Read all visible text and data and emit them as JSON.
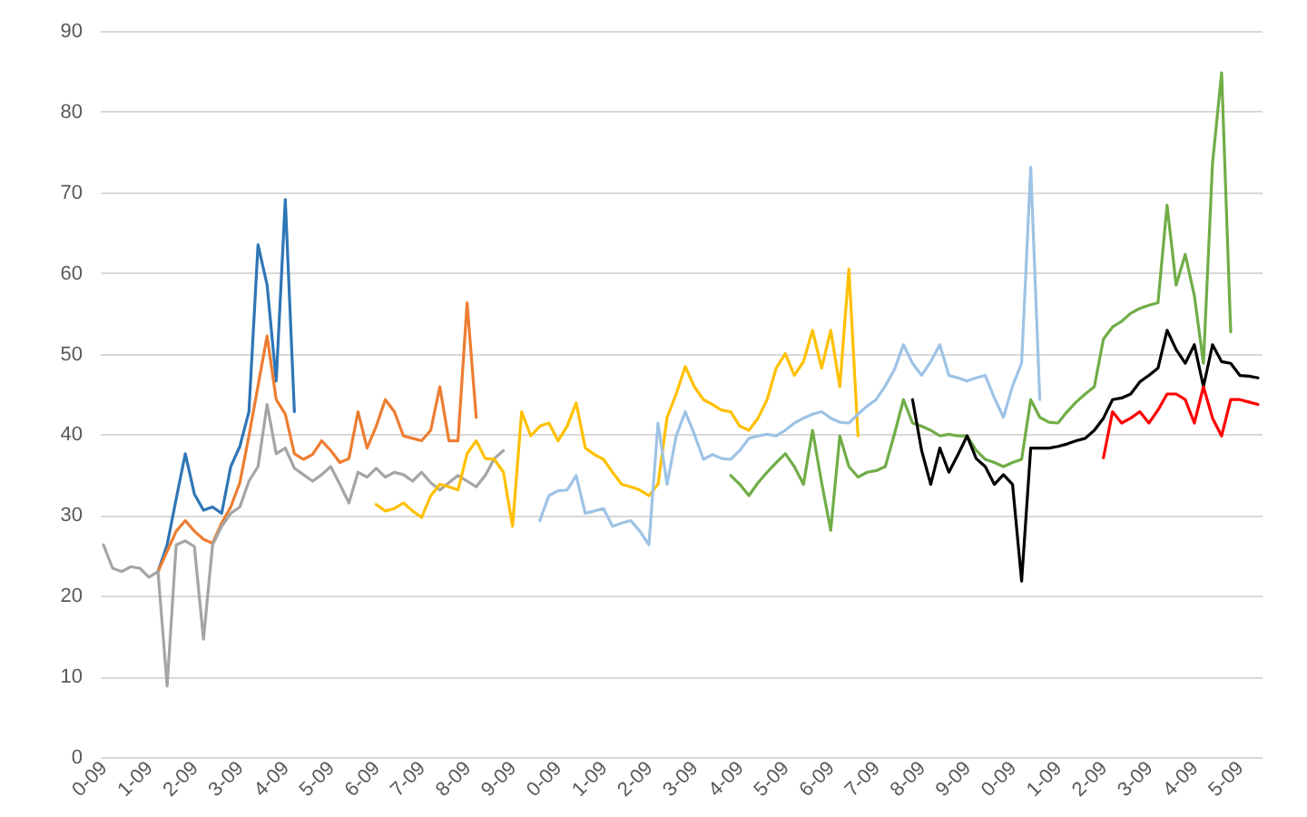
{
  "chart_data": {
    "type": "line",
    "categories": [
      "0-09",
      null,
      null,
      null,
      null,
      "1-09",
      null,
      null,
      null,
      null,
      "2-09",
      null,
      null,
      null,
      null,
      "3-09",
      null,
      null,
      null,
      null,
      "4-09",
      null,
      null,
      null,
      null,
      "5-09",
      null,
      null,
      null,
      null,
      "6-09",
      null,
      null,
      null,
      null,
      "7-09",
      null,
      null,
      null,
      null,
      "8-09",
      null,
      null,
      null,
      null,
      "9-09",
      null,
      null,
      null,
      null,
      "0-09",
      null,
      null,
      null,
      null,
      "1-09",
      null,
      null,
      null,
      null,
      "2-09",
      null,
      null,
      null,
      null,
      "3-09",
      null,
      null,
      null,
      null,
      "4-09",
      null,
      null,
      null,
      null,
      "5-09",
      null,
      null,
      null,
      null,
      "6-09",
      null,
      null,
      null,
      null,
      "7-09",
      null,
      null,
      null,
      null,
      "8-09",
      null,
      null,
      null,
      null,
      "9-09",
      null,
      null,
      null,
      null,
      "0-09",
      null,
      null,
      null,
      null,
      "1-09",
      null,
      null,
      null,
      null,
      "2-09",
      null,
      null,
      null,
      null,
      "3-09",
      null,
      null,
      null,
      null,
      "4-09",
      null,
      null,
      null,
      null,
      "5-09",
      null,
      null
    ],
    "ylim": [
      0,
      90
    ],
    "yticks": [
      0,
      10,
      20,
      30,
      40,
      50,
      60,
      70,
      80,
      90
    ],
    "grid": "y",
    "series": [
      {
        "color": "#2e75b6",
        "values": [
          null,
          null,
          null,
          null,
          null,
          null,
          23.0,
          26.3,
          32.0,
          37.6,
          32.6,
          30.6,
          31.0,
          30.2,
          36.0,
          38.5,
          42.8,
          63.5,
          58.5,
          46.6,
          69.1,
          42.8,
          null,
          null,
          null,
          null,
          null,
          null,
          null,
          null,
          null,
          null,
          null,
          null,
          null,
          null,
          null,
          null,
          null,
          null,
          null,
          null,
          null,
          null,
          null,
          null,
          null,
          null,
          null,
          null,
          null,
          null,
          null,
          null,
          null,
          null,
          null,
          null,
          null,
          null,
          null,
          null,
          null,
          null,
          null,
          null,
          null,
          null,
          null,
          null,
          null,
          null,
          null,
          null,
          null,
          null,
          null,
          null,
          null,
          null,
          null,
          null,
          null,
          null,
          null,
          null,
          null,
          null,
          null,
          null,
          null,
          null,
          null,
          null,
          null,
          null,
          null,
          null,
          null,
          null,
          null,
          null,
          null,
          null,
          null,
          null,
          null,
          null,
          null,
          null,
          null,
          null,
          null,
          null,
          null,
          null,
          null,
          null,
          null,
          null,
          null,
          null,
          null,
          null,
          null,
          null,
          null,
          null
        ]
      },
      {
        "color": "#ed7d31",
        "values": [
          null,
          null,
          null,
          null,
          null,
          null,
          23.0,
          25.5,
          28.0,
          29.3,
          28.0,
          27.0,
          26.5,
          29.0,
          31.0,
          34.0,
          39.8,
          46.0,
          52.2,
          44.3,
          42.5,
          37.6,
          36.9,
          37.5,
          39.2,
          38.0,
          36.5,
          37.0,
          42.8,
          38.3,
          41.0,
          44.3,
          42.8,
          39.8,
          39.5,
          39.2,
          40.5,
          45.9,
          39.2,
          39.2,
          56.3,
          42.1,
          null,
          null,
          null,
          null,
          null,
          null,
          null,
          null,
          null,
          null,
          null,
          null,
          null,
          null,
          null,
          null,
          null,
          null,
          null,
          null,
          null,
          null,
          null,
          null,
          null,
          null,
          null,
          null,
          null,
          null,
          null,
          null,
          null,
          null,
          null,
          null,
          null,
          null,
          null,
          null,
          null,
          null,
          null,
          null,
          null,
          null,
          null,
          null,
          null,
          null,
          null,
          null,
          null,
          null,
          null,
          null,
          null,
          null,
          null,
          null,
          null,
          null,
          null,
          null,
          null,
          null,
          null,
          null,
          null,
          null,
          null,
          null,
          null,
          null,
          null,
          null,
          null,
          null,
          null,
          null,
          null,
          null,
          null,
          null,
          null,
          null
        ]
      },
      {
        "color": "#a5a5a5",
        "values": [
          26.3,
          23.4,
          23.0,
          23.6,
          23.4,
          22.3,
          23.0,
          8.8,
          26.3,
          26.8,
          26.1,
          14.6,
          26.3,
          28.6,
          30.2,
          31.0,
          34.2,
          36.0,
          43.7,
          37.6,
          38.3,
          35.8,
          35.0,
          34.2,
          35.0,
          36.0,
          33.8,
          31.5,
          35.3,
          34.7,
          35.8,
          34.7,
          35.3,
          35.0,
          34.2,
          35.3,
          34.0,
          33.1,
          34.0,
          34.9,
          34.2,
          33.5,
          34.9,
          37.0,
          38.0,
          null,
          null,
          null,
          null,
          null,
          null,
          null,
          null,
          null,
          null,
          null,
          null,
          null,
          null,
          null,
          null,
          null,
          null,
          null,
          null,
          null,
          null,
          null,
          null,
          null,
          null,
          null,
          null,
          null,
          null,
          null,
          null,
          null,
          null,
          null,
          null,
          null,
          null,
          null,
          null,
          null,
          null,
          null,
          null,
          null,
          null,
          null,
          null,
          null,
          null,
          null,
          null,
          null,
          null,
          null,
          null,
          null,
          null,
          null,
          null,
          null,
          null,
          null,
          null,
          null,
          null,
          null,
          null,
          null,
          null,
          null,
          null,
          null,
          null,
          null,
          null,
          null,
          null,
          null,
          null,
          null,
          null,
          null
        ]
      },
      {
        "color": "#ffc000",
        "values": [
          null,
          null,
          null,
          null,
          null,
          null,
          null,
          null,
          null,
          null,
          null,
          null,
          null,
          null,
          null,
          null,
          null,
          null,
          null,
          null,
          null,
          null,
          null,
          null,
          null,
          null,
          null,
          null,
          null,
          null,
          31.3,
          30.5,
          30.8,
          31.5,
          30.5,
          29.7,
          32.4,
          33.8,
          33.5,
          33.1,
          37.6,
          39.2,
          37.0,
          36.9,
          35.3,
          28.6,
          42.8,
          39.8,
          41.0,
          41.4,
          39.2,
          41.0,
          43.9,
          38.3,
          37.5,
          36.9,
          35.3,
          33.8,
          33.5,
          33.1,
          32.4,
          33.8,
          42.1,
          45.0,
          48.4,
          45.9,
          44.3,
          43.7,
          43.0,
          42.8,
          41.0,
          40.5,
          42.0,
          44.3,
          48.2,
          50.0,
          47.3,
          49.0,
          52.9,
          48.2,
          52.9,
          45.9,
          60.5,
          39.8,
          null,
          null,
          null,
          null,
          null,
          null,
          null,
          null,
          null,
          null,
          null,
          null,
          null,
          null,
          null,
          null,
          null,
          null,
          null,
          null,
          null,
          null,
          null,
          null,
          null,
          null,
          null,
          null,
          null,
          null,
          null,
          null,
          null,
          null,
          null,
          null,
          null,
          null,
          null,
          null,
          null,
          null,
          null,
          null
        ]
      },
      {
        "color": "#9dc3e6",
        "values": [
          null,
          null,
          null,
          null,
          null,
          null,
          null,
          null,
          null,
          null,
          null,
          null,
          null,
          null,
          null,
          null,
          null,
          null,
          null,
          null,
          null,
          null,
          null,
          null,
          null,
          null,
          null,
          null,
          null,
          null,
          null,
          null,
          null,
          null,
          null,
          null,
          null,
          null,
          null,
          null,
          null,
          null,
          null,
          null,
          null,
          null,
          null,
          null,
          29.3,
          32.4,
          33.0,
          33.1,
          34.9,
          30.2,
          30.5,
          30.8,
          28.6,
          29.0,
          29.3,
          28.0,
          26.3,
          41.4,
          33.8,
          39.8,
          42.8,
          40.0,
          36.9,
          37.5,
          37.0,
          36.9,
          38.0,
          39.5,
          39.8,
          40.0,
          39.8,
          40.5,
          41.4,
          42.0,
          42.5,
          42.8,
          42.0,
          41.5,
          41.4,
          42.5,
          43.5,
          44.3,
          46.0,
          48.0,
          51.1,
          48.8,
          47.3,
          49.0,
          51.1,
          47.3,
          47.0,
          46.6,
          47.0,
          47.3,
          44.5,
          42.1,
          46.0,
          48.8,
          73.1,
          44.3,
          null,
          null,
          null,
          null,
          null,
          null,
          null,
          null,
          null,
          null,
          null,
          null,
          null,
          null,
          null,
          null,
          null,
          null,
          null,
          null,
          null,
          null,
          null,
          null
        ]
      },
      {
        "color": "#70ad47",
        "values": [
          null,
          null,
          null,
          null,
          null,
          null,
          null,
          null,
          null,
          null,
          null,
          null,
          null,
          null,
          null,
          null,
          null,
          null,
          null,
          null,
          null,
          null,
          null,
          null,
          null,
          null,
          null,
          null,
          null,
          null,
          null,
          null,
          null,
          null,
          null,
          null,
          null,
          null,
          null,
          null,
          null,
          null,
          null,
          null,
          null,
          null,
          null,
          null,
          null,
          null,
          null,
          null,
          null,
          null,
          null,
          null,
          null,
          null,
          null,
          null,
          null,
          null,
          null,
          null,
          null,
          null,
          null,
          null,
          null,
          34.9,
          33.8,
          32.4,
          34.0,
          35.3,
          36.5,
          37.6,
          36.0,
          33.8,
          40.5,
          34.0,
          28.1,
          39.8,
          36.0,
          34.7,
          35.3,
          35.5,
          36.0,
          40.0,
          44.3,
          41.4,
          41.0,
          40.5,
          39.8,
          40.0,
          39.8,
          39.8,
          38.0,
          36.9,
          36.5,
          36.0,
          36.5,
          36.9,
          44.3,
          42.1,
          41.5,
          41.4,
          42.8,
          44.0,
          45.0,
          45.9,
          51.8,
          53.3,
          54.0,
          55.0,
          55.6,
          56.0,
          56.3,
          68.4,
          58.5,
          62.3,
          57.2,
          48.8,
          73.6,
          84.8,
          52.7,
          null,
          null,
          null
        ]
      },
      {
        "color": "#000000",
        "values": [
          null,
          null,
          null,
          null,
          null,
          null,
          null,
          null,
          null,
          null,
          null,
          null,
          null,
          null,
          null,
          null,
          null,
          null,
          null,
          null,
          null,
          null,
          null,
          null,
          null,
          null,
          null,
          null,
          null,
          null,
          null,
          null,
          null,
          null,
          null,
          null,
          null,
          null,
          null,
          null,
          null,
          null,
          null,
          null,
          null,
          null,
          null,
          null,
          null,
          null,
          null,
          null,
          null,
          null,
          null,
          null,
          null,
          null,
          null,
          null,
          null,
          null,
          null,
          null,
          null,
          null,
          null,
          null,
          null,
          null,
          null,
          null,
          null,
          null,
          null,
          null,
          null,
          null,
          null,
          null,
          null,
          null,
          null,
          null,
          null,
          null,
          null,
          null,
          null,
          44.3,
          38.0,
          33.8,
          38.3,
          35.3,
          37.5,
          39.8,
          37.0,
          36.0,
          33.8,
          35.0,
          33.8,
          21.8,
          38.3,
          38.3,
          38.3,
          38.5,
          38.8,
          39.2,
          39.5,
          40.5,
          42.0,
          44.3,
          44.5,
          45.0,
          46.5,
          47.3,
          48.2,
          52.9,
          50.5,
          48.8,
          51.1,
          45.9,
          51.1,
          49.0,
          48.8,
          47.3,
          47.2,
          47.0
        ]
      },
      {
        "color": "#ff0000",
        "values": [
          null,
          null,
          null,
          null,
          null,
          null,
          null,
          null,
          null,
          null,
          null,
          null,
          null,
          null,
          null,
          null,
          null,
          null,
          null,
          null,
          null,
          null,
          null,
          null,
          null,
          null,
          null,
          null,
          null,
          null,
          null,
          null,
          null,
          null,
          null,
          null,
          null,
          null,
          null,
          null,
          null,
          null,
          null,
          null,
          null,
          null,
          null,
          null,
          null,
          null,
          null,
          null,
          null,
          null,
          null,
          null,
          null,
          null,
          null,
          null,
          null,
          null,
          null,
          null,
          null,
          null,
          null,
          null,
          null,
          null,
          null,
          null,
          null,
          null,
          null,
          null,
          null,
          null,
          null,
          null,
          null,
          null,
          null,
          null,
          null,
          null,
          null,
          null,
          null,
          null,
          null,
          null,
          null,
          null,
          null,
          null,
          null,
          null,
          null,
          null,
          null,
          null,
          null,
          null,
          null,
          null,
          null,
          null,
          null,
          null,
          37.1,
          42.8,
          41.4,
          42.0,
          42.8,
          41.4,
          43.0,
          45.0,
          45.0,
          44.3,
          41.4,
          45.9,
          42.0,
          39.8,
          44.3,
          44.3,
          44.0,
          43.7
        ]
      }
    ]
  }
}
